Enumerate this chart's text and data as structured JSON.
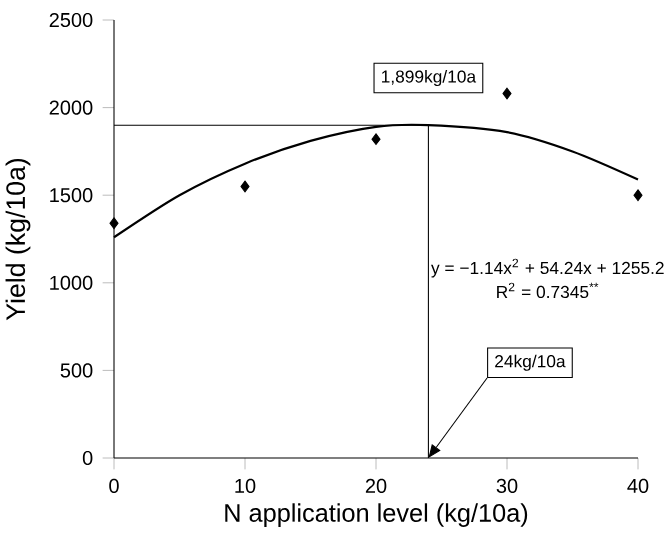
{
  "chart_data": {
    "type": "scatter",
    "xlabel": "N application level (kg/10a)",
    "ylabel": "Yield (kg/10a)",
    "xlim": [
      0,
      40
    ],
    "ylim": [
      0,
      2500
    ],
    "xticks": [
      0,
      10,
      20,
      30,
      40
    ],
    "yticks": [
      0,
      500,
      1000,
      1500,
      2000,
      2500
    ],
    "grid": false,
    "series": [
      {
        "color": "#000000",
        "marker": "diamond",
        "x": [
          0,
          10,
          20,
          30,
          40
        ],
        "values": [
          1340,
          1550,
          1820,
          2080,
          1500
        ]
      },
      {
        "type": "line",
        "color": "#000000",
        "marker": "none",
        "line_style": "solid",
        "x": [
          0,
          5,
          10,
          15,
          20,
          24,
          30,
          35,
          40
        ],
        "values": [
          1260,
          1500,
          1680,
          1810,
          1890,
          1900,
          1860,
          1750,
          1590
        ]
      }
    ],
    "ref_lines": [
      {
        "axis": "y",
        "value": 1899,
        "label": "1,899kg/10a",
        "color": "#000000",
        "line_style": "solid"
      },
      {
        "axis": "x",
        "value": 24,
        "label": "24kg/10a",
        "color": "#000000",
        "line_style": "solid"
      }
    ],
    "annotations": [
      "y = −1.14x$^{2}$ + 54.24x + 1255.2",
      "R$^{2}$ = 0.7345$^{**}$"
    ]
  }
}
